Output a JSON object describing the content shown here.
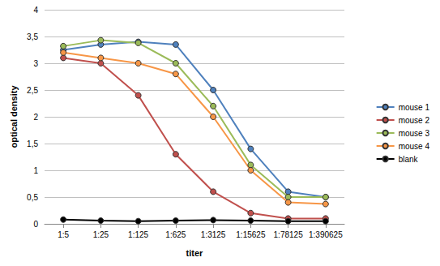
{
  "chart_data": {
    "type": "line",
    "x_label": "titer",
    "y_label": "optical density",
    "categories": [
      "1:5",
      "1:25",
      "1:125",
      "1:625",
      "1:3125",
      "1:15625",
      "1:78125",
      "1:390625"
    ],
    "series": [
      {
        "name": "mouse 1",
        "color": "#4f81bd",
        "values": [
          3.25,
          3.35,
          3.4,
          3.35,
          2.5,
          1.4,
          0.6,
          0.5
        ]
      },
      {
        "name": "mouse 2",
        "color": "#c0504d",
        "values": [
          3.1,
          3.0,
          2.4,
          1.3,
          0.6,
          0.2,
          0.1,
          0.1
        ]
      },
      {
        "name": "mouse 3",
        "color": "#9bbb59",
        "values": [
          3.32,
          3.43,
          3.38,
          3.0,
          2.2,
          1.1,
          0.5,
          0.5
        ]
      },
      {
        "name": "mouse 4",
        "color": "#f79646",
        "values": [
          3.2,
          3.1,
          3.0,
          2.8,
          2.0,
          1.0,
          0.4,
          0.37
        ]
      },
      {
        "name": "blank",
        "color": "#000000",
        "values": [
          0.08,
          0.06,
          0.05,
          0.06,
          0.07,
          0.06,
          0.05,
          0.05
        ]
      }
    ],
    "ylim": [
      0,
      4
    ],
    "yticks": [
      0,
      {
        "value": 0.5,
        "label": "0,5"
      },
      1,
      {
        "value": 1.5,
        "label": "1,5"
      },
      2,
      {
        "value": 2.5,
        "label": "2,5"
      },
      3,
      {
        "value": 3.5,
        "label": "3,5"
      },
      4
    ],
    "grid": true,
    "legend": "right",
    "marker": "circle"
  }
}
